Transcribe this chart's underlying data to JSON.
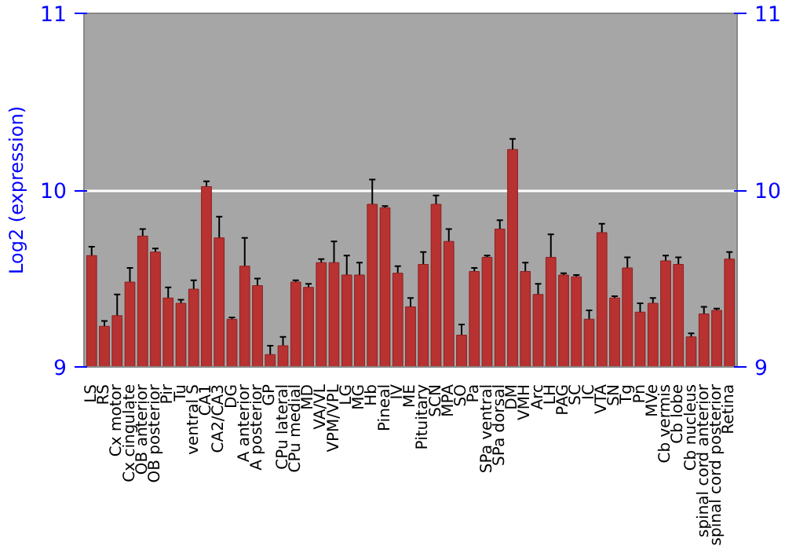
{
  "chart_data": {
    "type": "bar",
    "ylabel": "Log2 (expression)",
    "categories": [
      "LS",
      "RS",
      "Cx motor",
      "Cx cingulate",
      "OB anterior",
      "OB posterior",
      "Pir",
      "Tu",
      "ventral S",
      "CA1",
      "CA2/CA3",
      "DG",
      "A anterior",
      "A posterior",
      "GP",
      "CPu lateral",
      "CPu medial",
      "MD",
      "VA/VL",
      "VPM/VPL",
      "LG",
      "MG",
      "Hb",
      "Pineal",
      "IV",
      "ME",
      "Pituitary",
      "SCN",
      "MPA",
      "SO",
      "Pa",
      "SPa ventral",
      "SPa dorsal",
      "DM",
      "VMH",
      "Arc",
      "LH",
      "PAG",
      "SC",
      "IC",
      "VTA",
      "SN",
      "Tg",
      "Pn",
      "MVe",
      "Cb vermis",
      "Cb lobe",
      "Cb nucleus",
      "spinal cord anterior",
      "spinal cord posterior",
      "Retina"
    ],
    "values": [
      9.63,
      9.23,
      9.29,
      9.48,
      9.74,
      9.65,
      9.39,
      9.36,
      9.44,
      10.02,
      9.73,
      9.27,
      9.57,
      9.46,
      9.07,
      9.12,
      9.48,
      9.45,
      9.59,
      9.59,
      9.52,
      9.52,
      9.92,
      9.9,
      9.53,
      9.34,
      9.58,
      9.92,
      9.71,
      9.18,
      9.54,
      9.62,
      9.78,
      10.23,
      9.54,
      9.41,
      9.62,
      9.52,
      9.51,
      9.27,
      9.76,
      9.39,
      9.56,
      9.31,
      9.36,
      9.6,
      9.58,
      9.17,
      9.3,
      9.32,
      9.61
    ],
    "errors": [
      0.05,
      0.03,
      0.12,
      0.08,
      0.04,
      0.02,
      0.06,
      0.02,
      0.05,
      0.03,
      0.12,
      0.01,
      0.16,
      0.04,
      0.05,
      0.05,
      0.01,
      0.02,
      0.02,
      0.12,
      0.11,
      0.07,
      0.14,
      0.01,
      0.04,
      0.05,
      0.07,
      0.05,
      0.07,
      0.06,
      0.02,
      0.01,
      0.05,
      0.06,
      0.05,
      0.06,
      0.13,
      0.01,
      0.01,
      0.05,
      0.05,
      0.01,
      0.06,
      0.05,
      0.03,
      0.03,
      0.04,
      0.02,
      0.04,
      0.01,
      0.04
    ],
    "color": "#b83232",
    "ylim": [
      9,
      11
    ],
    "yticks": [
      9,
      10,
      11
    ],
    "y2lim": [
      9,
      11
    ],
    "y2ticks": [
      9,
      10,
      11
    ],
    "grid": "y"
  }
}
